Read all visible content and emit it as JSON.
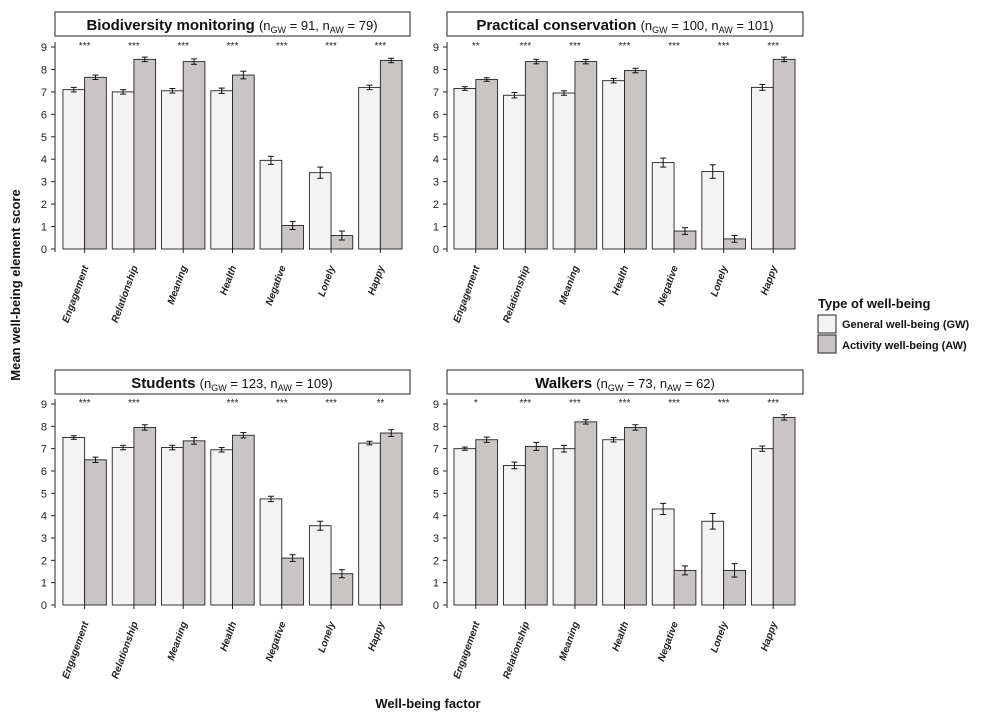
{
  "figure": {
    "y_axis_title": "Mean well-being element score",
    "x_axis_title": "Well-being factor"
  },
  "legend": {
    "title": "Type of well-being",
    "items": [
      {
        "label": "General well-being (GW)",
        "color": "#f3f3f3"
      },
      {
        "label": "Activity well-being (AW)",
        "color": "#c8c5c4"
      }
    ]
  },
  "chart_data": [
    {
      "type": "bar",
      "title": "Biodiversity monitoring",
      "n_text": {
        "gw": "91",
        "aw": "79"
      },
      "categories": [
        "Engagement",
        "Relationship",
        "Meaning",
        "Health",
        "Negative",
        "Lonely",
        "Happy"
      ],
      "series": [
        {
          "name": "General well-being (GW)",
          "values": [
            7.1,
            7.0,
            7.05,
            7.05,
            3.95,
            3.4,
            7.2
          ],
          "errors": [
            0.1,
            0.1,
            0.1,
            0.12,
            0.18,
            0.25,
            0.1
          ]
        },
        {
          "name": "Activity well-being (AW)",
          "values": [
            7.65,
            8.45,
            8.35,
            7.75,
            1.05,
            0.6,
            8.4
          ],
          "errors": [
            0.1,
            0.1,
            0.12,
            0.17,
            0.18,
            0.2,
            0.1
          ]
        }
      ],
      "significance": [
        "***",
        "***",
        "***",
        "***",
        "***",
        "***",
        "***"
      ],
      "ylim": [
        0,
        9
      ],
      "yticks": [
        0,
        1,
        2,
        3,
        4,
        5,
        6,
        7,
        8,
        9
      ]
    },
    {
      "type": "bar",
      "title": "Practical conservation",
      "n_text": {
        "gw": "100",
        "aw": "101"
      },
      "categories": [
        "Engagement",
        "Relationship",
        "Meaning",
        "Health",
        "Negative",
        "Lonely",
        "Happy"
      ],
      "series": [
        {
          "name": "General well-being (GW)",
          "values": [
            7.15,
            6.85,
            6.95,
            7.5,
            3.85,
            3.45,
            7.2
          ],
          "errors": [
            0.08,
            0.12,
            0.1,
            0.1,
            0.2,
            0.3,
            0.13
          ]
        },
        {
          "name": "Activity well-being (AW)",
          "values": [
            7.55,
            8.35,
            8.35,
            7.95,
            0.8,
            0.45,
            8.45
          ],
          "errors": [
            0.08,
            0.1,
            0.1,
            0.1,
            0.15,
            0.15,
            0.1
          ]
        }
      ],
      "significance": [
        "**",
        "***",
        "***",
        "***",
        "***",
        "***",
        "***"
      ],
      "ylim": [
        0,
        9
      ],
      "yticks": [
        0,
        1,
        2,
        3,
        4,
        5,
        6,
        7,
        8,
        9
      ]
    },
    {
      "type": "bar",
      "title": "Students",
      "n_text": {
        "gw": "123",
        "aw": "109"
      },
      "categories": [
        "Engagement",
        "Relationship",
        "Meaning",
        "Health",
        "Negative",
        "Lonely",
        "Happy"
      ],
      "series": [
        {
          "name": "General well-being (GW)",
          "values": [
            7.5,
            7.05,
            7.05,
            6.95,
            4.75,
            3.55,
            7.25
          ],
          "errors": [
            0.08,
            0.1,
            0.1,
            0.1,
            0.12,
            0.2,
            0.08
          ]
        },
        {
          "name": "Activity well-being (AW)",
          "values": [
            6.5,
            7.95,
            7.35,
            7.6,
            2.1,
            1.4,
            7.7
          ],
          "errors": [
            0.12,
            0.12,
            0.15,
            0.12,
            0.15,
            0.18,
            0.15
          ]
        }
      ],
      "significance": [
        "***",
        "***",
        "",
        "***",
        "***",
        "***",
        "**"
      ],
      "ylim": [
        0,
        9
      ],
      "yticks": [
        0,
        1,
        2,
        3,
        4,
        5,
        6,
        7,
        8,
        9
      ]
    },
    {
      "type": "bar",
      "title": "Walkers",
      "n_text": {
        "gw": "73",
        "aw": "62"
      },
      "categories": [
        "Engagement",
        "Relationship",
        "Meaning",
        "Health",
        "Negative",
        "Lonely",
        "Happy"
      ],
      "series": [
        {
          "name": "General well-being (GW)",
          "values": [
            7.0,
            6.25,
            7.0,
            7.4,
            4.3,
            3.75,
            7.0
          ],
          "errors": [
            0.07,
            0.15,
            0.15,
            0.1,
            0.25,
            0.35,
            0.12
          ]
        },
        {
          "name": "Activity well-being (AW)",
          "values": [
            7.4,
            7.1,
            8.2,
            7.95,
            1.55,
            1.55,
            8.4
          ],
          "errors": [
            0.12,
            0.18,
            0.1,
            0.12,
            0.2,
            0.3,
            0.12
          ]
        }
      ],
      "significance": [
        "*",
        "***",
        "***",
        "***",
        "***",
        "***",
        "***"
      ],
      "ylim": [
        0,
        9
      ],
      "yticks": [
        0,
        1,
        2,
        3,
        4,
        5,
        6,
        7,
        8,
        9
      ]
    }
  ]
}
